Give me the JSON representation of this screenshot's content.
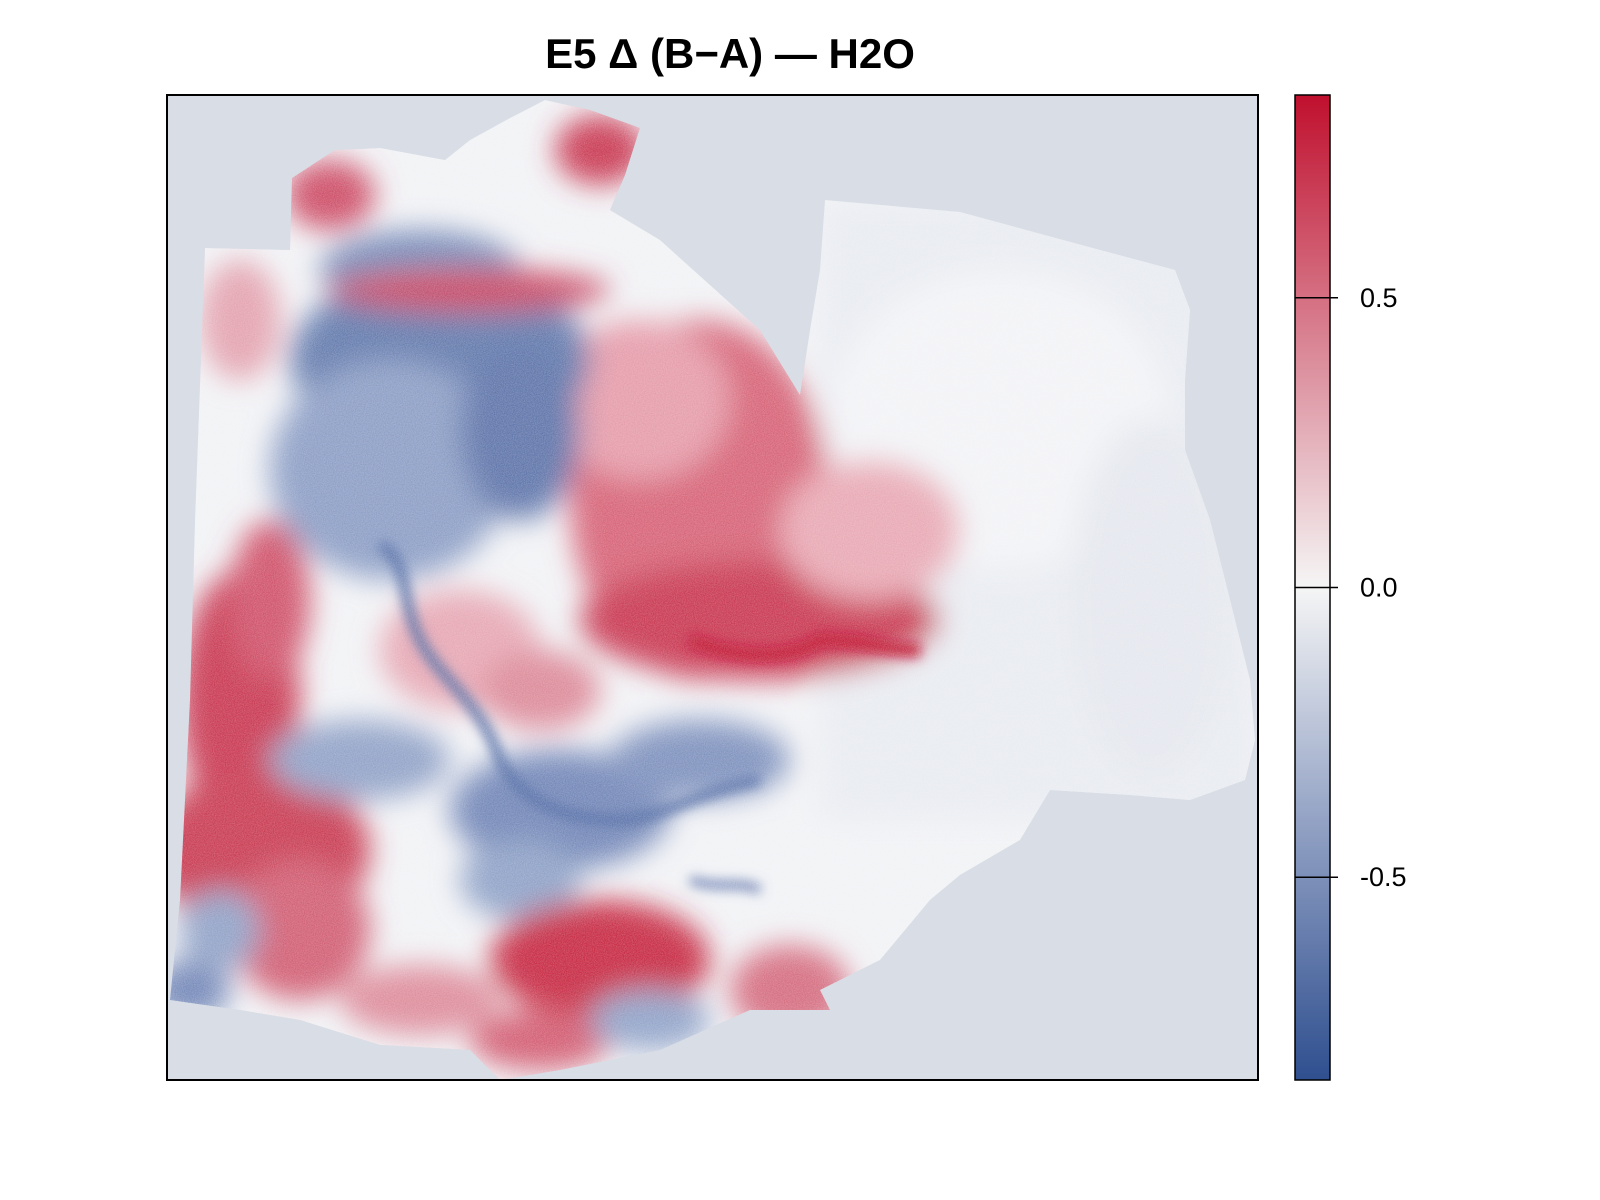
{
  "chart_data": {
    "type": "heatmap",
    "title": "E5 Δ (B−A) — H2O",
    "xlabel": "",
    "ylabel": "",
    "colorbar": {
      "range": [
        -0.85,
        0.85
      ],
      "ticks": [
        -0.5,
        0.0,
        0.5
      ],
      "tick_labels": [
        "-0.5",
        "0.0",
        "0.5"
      ],
      "colors": {
        "low": "#3b5998",
        "mid": "#f5f5f5",
        "high": "#c0102e"
      }
    },
    "background_color": "#d9dee6",
    "grid": false,
    "legend_position": "right"
  }
}
